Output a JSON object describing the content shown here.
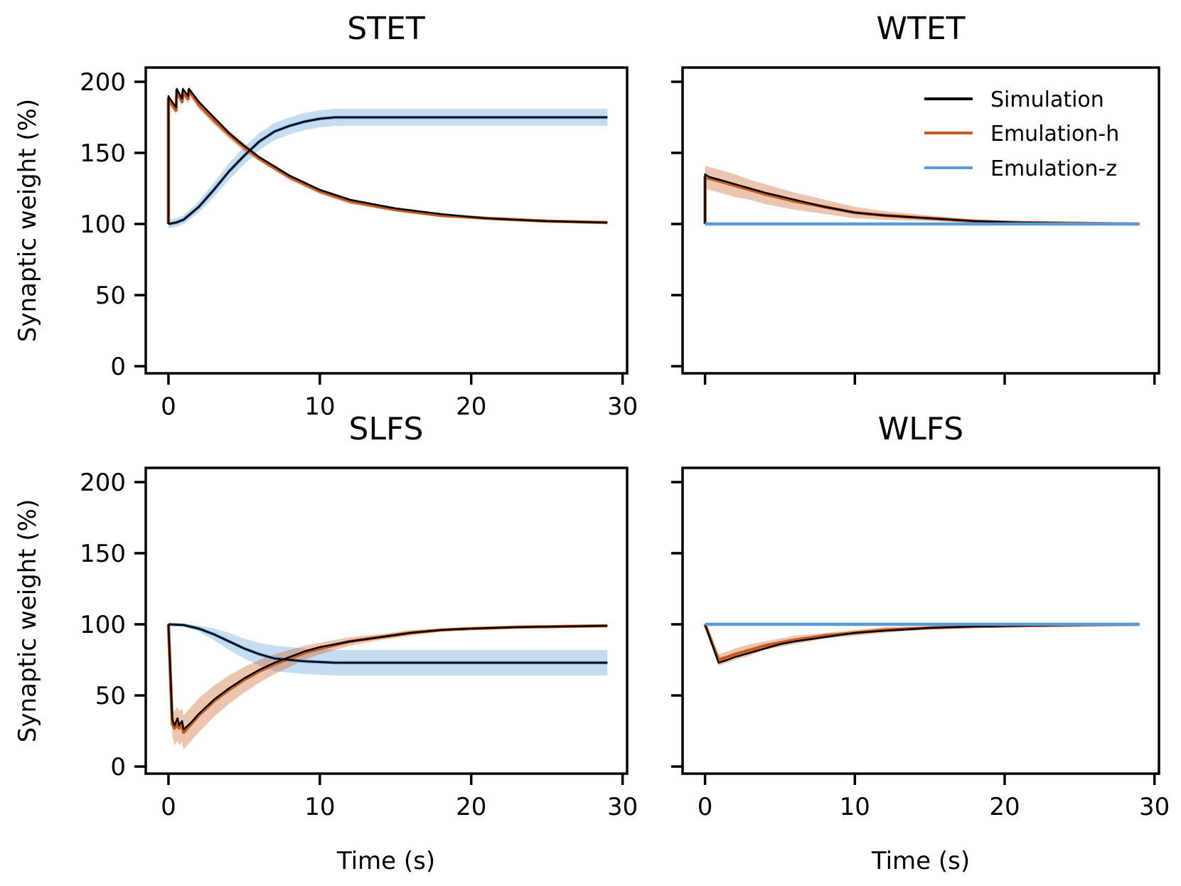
{
  "figure": {
    "ylabel": "Synaptic weight (%)",
    "xlabel": "Time (s)",
    "legend": [
      {
        "label": "Simulation",
        "color": "#000000"
      },
      {
        "label": "Emulation-h",
        "color": "#c65a1e"
      },
      {
        "label": "Emulation-z",
        "color": "#5b9bd5"
      }
    ]
  },
  "chart_data": [
    {
      "type": "line",
      "title": "STET",
      "xlabel": "",
      "ylabel": "Synaptic weight (%)",
      "xlim": [
        -1.5,
        30.3
      ],
      "ylim": [
        -5,
        210
      ],
      "xticks": [
        "0",
        "10",
        "20",
        "30"
      ],
      "yticks": [
        "0",
        "50",
        "100",
        "150",
        "200"
      ],
      "series": [
        {
          "name": "Emulation-z",
          "color": "#5b9bd5",
          "x": [
            0,
            0.5,
            1,
            2,
            3,
            4,
            5,
            6,
            7,
            8,
            9,
            10,
            11,
            12,
            14,
            16,
            20,
            25,
            29
          ],
          "y": [
            100,
            101,
            103,
            112,
            124,
            137,
            148,
            158,
            165,
            169,
            172,
            174,
            175,
            175,
            175,
            175,
            175,
            175,
            175
          ],
          "band": [
            3,
            3,
            3,
            4,
            5,
            6,
            6,
            6,
            6,
            6,
            6,
            6,
            6,
            6,
            6,
            6,
            6,
            6,
            6
          ]
        },
        {
          "name": "Emulation-h",
          "color": "#c65a1e",
          "x": [
            0,
            0,
            0.1,
            0.5,
            0.55,
            0.9,
            0.95,
            1.3,
            1.35,
            2,
            3,
            4,
            5,
            6,
            8,
            10,
            12,
            15,
            18,
            21,
            25,
            29
          ],
          "y": [
            100,
            188,
            186,
            180,
            194,
            186,
            193,
            188,
            194,
            184,
            173,
            163,
            154,
            146,
            133,
            123,
            116,
            110,
            106,
            104,
            102,
            101
          ],
          "band": [
            0,
            3,
            3,
            3,
            3,
            3,
            3,
            3,
            3,
            3,
            3,
            3,
            3,
            2,
            2,
            2,
            2,
            1,
            1,
            1,
            1,
            1
          ]
        },
        {
          "name": "Simulation",
          "color": "#000000",
          "x": [
            0,
            0,
            0.1,
            0.5,
            0.55,
            0.9,
            0.95,
            1.3,
            1.35,
            2,
            3,
            4,
            5,
            6,
            8,
            10,
            12,
            15,
            18,
            21,
            25,
            29
          ],
          "y": [
            100,
            190,
            188,
            182,
            195,
            188,
            195,
            190,
            195,
            186,
            175,
            164,
            155,
            147,
            134,
            124,
            117,
            111,
            107,
            104,
            102,
            101
          ]
        },
        {
          "name": "Simulation",
          "color": "#000000",
          "x": [
            0,
            0.5,
            1,
            2,
            3,
            4,
            5,
            6,
            7,
            8,
            9,
            10,
            11,
            12,
            14,
            16,
            20,
            25,
            29
          ],
          "y": [
            100,
            101,
            103,
            112,
            124,
            137,
            148,
            158,
            165,
            169,
            172,
            174,
            175,
            175,
            175,
            175,
            175,
            175,
            175
          ]
        }
      ]
    },
    {
      "type": "line",
      "title": "WTET",
      "xlabel": "",
      "ylabel": "",
      "xlim": [
        -1.5,
        30.3
      ],
      "ylim": [
        -5,
        210
      ],
      "xticks": [
        "",
        "",
        "",
        ""
      ],
      "yticks": [
        "",
        "",
        "",
        "",
        ""
      ],
      "series": [
        {
          "name": "Emulation-h",
          "color": "#c65a1e",
          "x": [
            0,
            0,
            0.3,
            1,
            2,
            3,
            4,
            6,
            8,
            10,
            12,
            15,
            18,
            21,
            25,
            29
          ],
          "y": [
            100,
            133,
            132,
            130,
            127,
            124,
            121,
            116,
            112,
            108,
            106,
            104,
            102,
            101,
            100.5,
            100
          ],
          "band": [
            0,
            8,
            8,
            8,
            8,
            7,
            7,
            6,
            5,
            4,
            3,
            2,
            1,
            1,
            1,
            0
          ]
        },
        {
          "name": "Simulation",
          "color": "#000000",
          "x": [
            0,
            0,
            0.3,
            1,
            2,
            3,
            4,
            6,
            8,
            10,
            12,
            15,
            18,
            21,
            25,
            29
          ],
          "y": [
            100,
            135,
            133,
            131,
            128,
            125,
            122,
            117,
            112,
            108,
            106,
            104,
            102,
            101,
            100.5,
            100
          ]
        },
        {
          "name": "Emulation-z",
          "color": "#5b9bd5",
          "x": [
            0,
            29
          ],
          "y": [
            100,
            100
          ]
        }
      ]
    },
    {
      "type": "line",
      "title": "SLFS",
      "xlabel": "Time (s)",
      "ylabel": "Synaptic weight (%)",
      "xlim": [
        -1.5,
        30.3
      ],
      "ylim": [
        -5,
        210
      ],
      "xticks": [
        "0",
        "10",
        "20",
        "30"
      ],
      "yticks": [
        "0",
        "50",
        "100",
        "150",
        "200"
      ],
      "series": [
        {
          "name": "Emulation-z",
          "color": "#5b9bd5",
          "x": [
            0,
            1,
            2,
            3,
            4,
            5,
            6,
            7,
            8,
            9,
            10,
            11,
            12,
            14,
            16,
            20,
            25,
            29
          ],
          "y": [
            100,
            99.5,
            97,
            93,
            88,
            83,
            79,
            76,
            75,
            74,
            73.5,
            73,
            73,
            73,
            73,
            73,
            73,
            73
          ],
          "band": [
            0,
            1,
            2,
            4,
            6,
            7,
            8,
            9,
            9,
            9,
            9,
            9,
            9,
            9,
            9,
            9,
            9,
            9
          ]
        },
        {
          "name": "Emulation-h",
          "color": "#c65a1e",
          "x": [
            0,
            0.25,
            0.4,
            0.6,
            0.7,
            0.9,
            1,
            1.5,
            2,
            3,
            4,
            5,
            6,
            7,
            8,
            9,
            10,
            12,
            14,
            16,
            18,
            20,
            23,
            26,
            29
          ],
          "y": [
            100,
            30,
            27,
            30,
            27,
            29,
            24,
            30,
            36,
            46,
            54,
            61,
            67,
            72,
            76,
            80,
            83,
            88,
            91,
            94,
            96,
            97,
            98,
            98.5,
            99
          ],
          "band": [
            0,
            8,
            12,
            12,
            12,
            12,
            12,
            12,
            12,
            11,
            10,
            9,
            8,
            7,
            6,
            5,
            4,
            3,
            2,
            2,
            1,
            1,
            1,
            1,
            0
          ]
        },
        {
          "name": "Simulation",
          "color": "#000000",
          "x": [
            0,
            0.25,
            0.4,
            0.6,
            0.7,
            0.9,
            1,
            1.5,
            2,
            3,
            4,
            5,
            6,
            7,
            8,
            9,
            10,
            12,
            14,
            16,
            18,
            20,
            23,
            26,
            29
          ],
          "y": [
            100,
            33,
            29,
            34,
            29,
            32,
            26,
            31,
            37,
            47,
            55,
            62,
            68,
            73,
            77,
            81,
            84,
            88,
            91,
            94,
            96,
            97,
            98,
            98.5,
            99
          ]
        },
        {
          "name": "Simulation",
          "color": "#000000",
          "x": [
            0,
            1,
            2,
            3,
            4,
            5,
            6,
            7,
            8,
            9,
            10,
            11,
            12,
            14,
            16,
            20,
            25,
            29
          ],
          "y": [
            100,
            99.5,
            97,
            93,
            88,
            83,
            79,
            76,
            75,
            74,
            73.5,
            73,
            73,
            73,
            73,
            73,
            73,
            73
          ]
        }
      ]
    },
    {
      "type": "line",
      "title": "WLFS",
      "xlabel": "Time (s)",
      "ylabel": "",
      "xlim": [
        -1.5,
        30.3
      ],
      "ylim": [
        -5,
        210
      ],
      "xticks": [
        "0",
        "10",
        "20",
        "30"
      ],
      "yticks": [
        "",
        "",
        "",
        "",
        ""
      ],
      "series": [
        {
          "name": "Emulation-h",
          "color": "#c65a1e",
          "x": [
            0,
            0.9,
            1.5,
            2,
            3,
            4,
            5,
            6,
            8,
            10,
            12,
            15,
            18,
            21,
            25,
            29
          ],
          "y": [
            100,
            75,
            77,
            79,
            82,
            85,
            87,
            89,
            92,
            94,
            96,
            97.5,
            98.5,
            99,
            99.5,
            100
          ],
          "band": [
            0,
            4,
            4,
            4,
            4,
            3,
            3,
            3,
            2,
            2,
            2,
            1,
            1,
            1,
            0,
            0
          ]
        },
        {
          "name": "Simulation",
          "color": "#000000",
          "x": [
            0,
            0.9,
            1.5,
            2,
            3,
            4,
            5,
            6,
            8,
            10,
            12,
            15,
            18,
            21,
            25,
            29
          ],
          "y": [
            100,
            73,
            75,
            77,
            80,
            83,
            86,
            88,
            91,
            94,
            95.5,
            97.5,
            98.5,
            99,
            99.5,
            100
          ]
        },
        {
          "name": "Emulation-z",
          "color": "#5b9bd5",
          "x": [
            0,
            29
          ],
          "y": [
            100,
            100
          ]
        }
      ]
    }
  ]
}
